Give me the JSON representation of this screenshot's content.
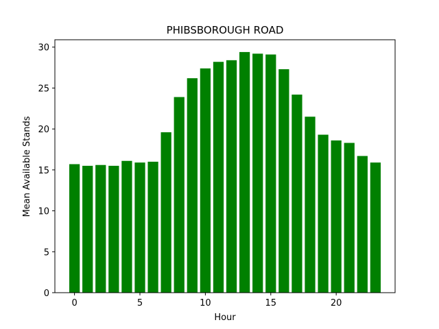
{
  "chart_data": {
    "type": "bar",
    "title": "PHIBSBOROUGH ROAD",
    "xlabel": "Hour",
    "ylabel": "Mean Available Stands",
    "x": [
      0,
      1,
      2,
      3,
      4,
      5,
      6,
      7,
      8,
      9,
      10,
      11,
      12,
      13,
      14,
      15,
      16,
      17,
      18,
      19,
      20,
      21,
      22,
      23
    ],
    "values": [
      15.7,
      15.5,
      15.6,
      15.5,
      16.1,
      15.9,
      16.0,
      19.6,
      23.9,
      26.2,
      27.4,
      28.2,
      28.4,
      29.4,
      29.2,
      29.1,
      27.3,
      24.2,
      21.5,
      19.3,
      18.6,
      18.3,
      16.7,
      15.9
    ],
    "xlim": [
      -1.5,
      24.5
    ],
    "ylim": [
      0,
      30.9
    ],
    "xticks": [
      0,
      5,
      10,
      15,
      20
    ],
    "yticks": [
      0,
      5,
      10,
      15,
      20,
      25,
      30
    ],
    "bar_color": "#008000",
    "grid": false
  }
}
